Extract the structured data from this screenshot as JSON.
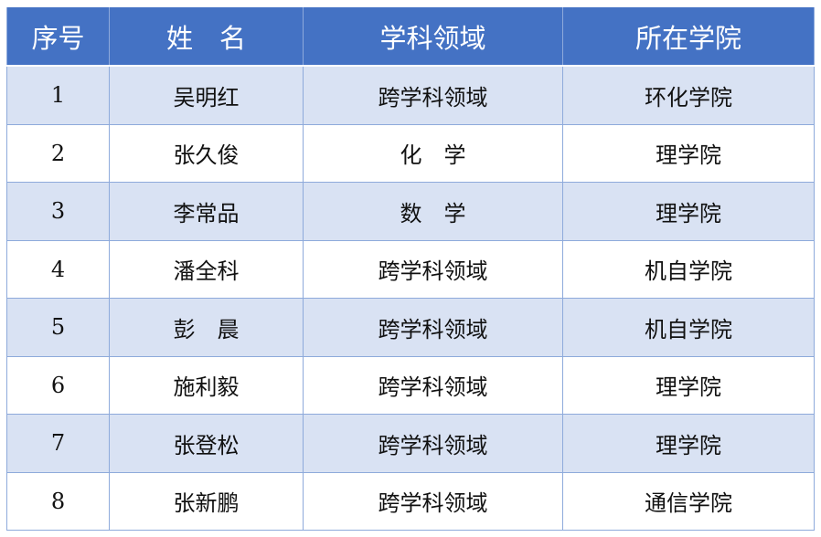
{
  "header": {
    "index": "序号",
    "name": "姓　名",
    "field": "学科领域",
    "college": "所在学院"
  },
  "colors": {
    "header_bg": "#4472C4",
    "band_bg": "#D9E2F3",
    "border": "#8EAADB"
  },
  "rows": [
    {
      "index": "1",
      "name": "吴明红",
      "field": "跨学科领域",
      "college": "环化学院"
    },
    {
      "index": "2",
      "name": "张久俊",
      "field": "化　学",
      "college": "理学院"
    },
    {
      "index": "3",
      "name": "李常品",
      "field": "数　学",
      "college": "理学院"
    },
    {
      "index": "4",
      "name": "潘全科",
      "field": "跨学科领域",
      "college": "机自学院"
    },
    {
      "index": "5",
      "name": "彭　晨",
      "field": "跨学科领域",
      "college": "机自学院"
    },
    {
      "index": "6",
      "name": "施利毅",
      "field": "跨学科领域",
      "college": "理学院"
    },
    {
      "index": "7",
      "name": "张登松",
      "field": "跨学科领域",
      "college": "理学院"
    },
    {
      "index": "8",
      "name": "张新鹏",
      "field": "跨学科领域",
      "college": "通信学院"
    }
  ]
}
